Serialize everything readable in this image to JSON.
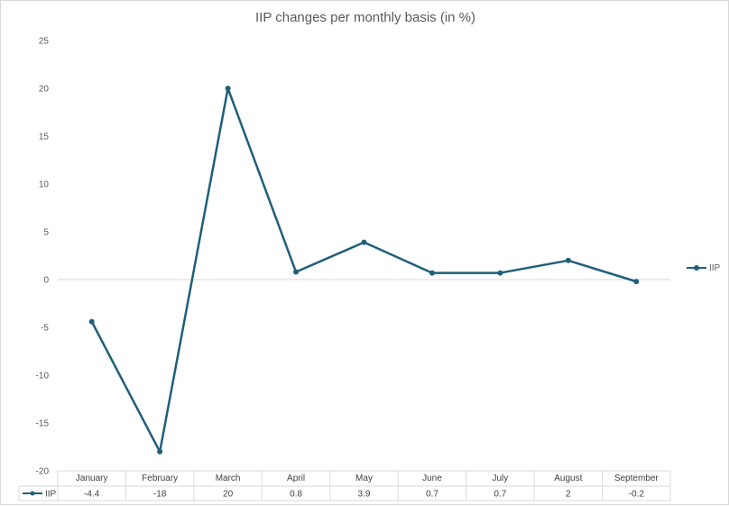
{
  "chart_data": {
    "type": "line",
    "title": "IIP changes per monthly basis (in %)",
    "categories": [
      "January",
      "February",
      "March",
      "April",
      "May",
      "June",
      "July",
      "August",
      "September"
    ],
    "series": [
      {
        "name": "IIP",
        "values": [
          -4.4,
          -18,
          20,
          0.8,
          3.9,
          0.7,
          0.7,
          2,
          -0.2
        ],
        "value_labels": [
          "-4.4",
          "-18",
          "20",
          "0.8",
          "3.9",
          "0.7",
          "0.7",
          "2",
          "-0.2"
        ]
      }
    ],
    "ylim": [
      -20,
      25
    ],
    "yticks": [
      25,
      20,
      15,
      10,
      5,
      0,
      -5,
      -10,
      -15,
      -20
    ],
    "legend_position": "right",
    "data_table": true,
    "gridlines": false,
    "colors": {
      "series": "#1f5f7a",
      "axis": "#d9d9d9",
      "text": "#595959"
    }
  }
}
